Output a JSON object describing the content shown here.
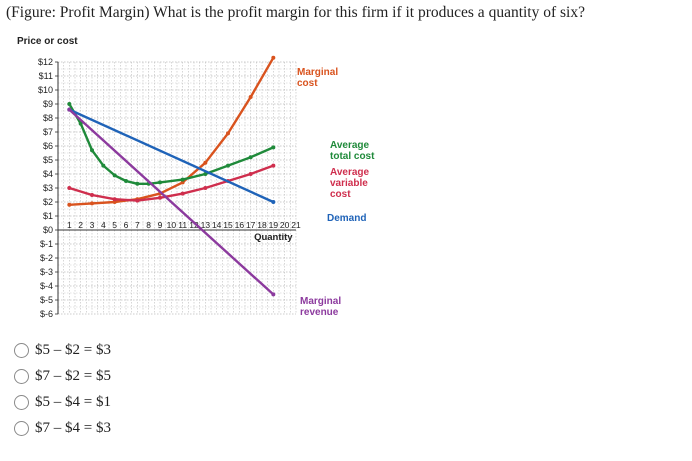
{
  "question": {
    "text": "(Figure: Profit Margin) What is the profit margin for this firm if it produces a quantity of six?"
  },
  "options": [
    {
      "label": "$5 – $2 = $3"
    },
    {
      "label": "$7 – $2 = $5"
    },
    {
      "label": "$5 – $4 = $1"
    },
    {
      "label": "$7 – $4 = $3"
    }
  ],
  "chart_data": {
    "type": "line",
    "ylabel": "Price or cost",
    "xlabel": "Quantity",
    "xlim": [
      0,
      21
    ],
    "ylim": [
      -6,
      12
    ],
    "grid": true,
    "x_ticks": [
      1,
      2,
      3,
      4,
      5,
      6,
      7,
      8,
      9,
      10,
      11,
      12,
      13,
      14,
      15,
      16,
      17,
      18,
      19,
      20,
      21
    ],
    "x_tick_labels": [
      "1",
      "2",
      "3",
      "4",
      "5",
      "6",
      "7",
      "8",
      "9",
      "10",
      "11",
      "12",
      "13",
      "14",
      "15",
      "16",
      "17",
      "18",
      "19",
      "20",
      "21"
    ],
    "y_ticks": [
      12,
      11,
      10,
      9,
      8,
      7,
      6,
      5,
      4,
      3,
      2,
      1,
      0,
      -1,
      -2,
      -3,
      -4,
      -5,
      -6
    ],
    "y_tick_labels": [
      "$12",
      "$11",
      "$10",
      "$9",
      "$8",
      "$7",
      "$6",
      "$5",
      "$4",
      "$3",
      "$2",
      "$1",
      "$0",
      "$-1",
      "$-2",
      "$-3",
      "$-4",
      "$-5",
      "$-6"
    ],
    "series": [
      {
        "name": "Marginal cost",
        "label_lines": [
          "Marginal",
          "cost"
        ],
        "color": "#d9531e",
        "x": [
          1,
          3,
          5,
          7,
          9,
          11,
          13,
          15,
          17,
          19
        ],
        "y": [
          1.8,
          1.9,
          2.0,
          2.2,
          2.6,
          3.4,
          4.8,
          6.9,
          9.5,
          12.3
        ]
      },
      {
        "name": "Average total cost",
        "label_lines": [
          "Average",
          "total cost"
        ],
        "color": "#1f8a3a",
        "x": [
          1,
          2,
          3,
          4,
          5,
          6,
          7,
          8,
          9,
          11,
          13,
          15,
          17,
          19
        ],
        "y": [
          9.0,
          7.6,
          5.7,
          4.6,
          3.9,
          3.5,
          3.3,
          3.3,
          3.4,
          3.6,
          4.0,
          4.6,
          5.2,
          5.9
        ]
      },
      {
        "name": "Average variable cost",
        "label_lines": [
          "Average",
          "variable",
          "cost"
        ],
        "color": "#cf2e4d",
        "x": [
          1,
          3,
          5,
          7,
          9,
          11,
          13,
          15,
          17,
          19
        ],
        "y": [
          3.0,
          2.5,
          2.2,
          2.1,
          2.3,
          2.6,
          3.0,
          3.5,
          4.0,
          4.6
        ]
      },
      {
        "name": "Demand",
        "label_lines": [
          "Demand"
        ],
        "color": "#1f63b8",
        "x": [
          1,
          19
        ],
        "y": [
          8.6,
          2.0
        ]
      },
      {
        "name": "Marginal revenue",
        "label_lines": [
          "Marginal",
          "revenue"
        ],
        "color": "#8c3a9e",
        "x": [
          1,
          19
        ],
        "y": [
          8.6,
          -4.6
        ]
      }
    ]
  }
}
